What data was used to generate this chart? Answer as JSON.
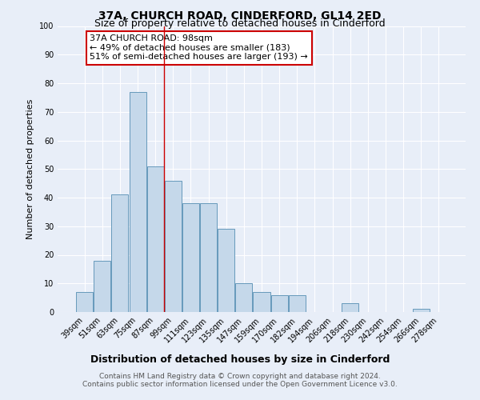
{
  "title": "37A, CHURCH ROAD, CINDERFORD, GL14 2ED",
  "subtitle": "Size of property relative to detached houses in Cinderford",
  "xlabel": "Distribution of detached houses by size in Cinderford",
  "ylabel": "Number of detached properties",
  "footer1": "Contains HM Land Registry data © Crown copyright and database right 2024.",
  "footer2": "Contains public sector information licensed under the Open Government Licence v3.0.",
  "categories": [
    "39sqm",
    "51sqm",
    "63sqm",
    "75sqm",
    "87sqm",
    "99sqm",
    "111sqm",
    "123sqm",
    "135sqm",
    "147sqm",
    "159sqm",
    "170sqm",
    "182sqm",
    "194sqm",
    "206sqm",
    "218sqm",
    "230sqm",
    "242sqm",
    "254sqm",
    "266sqm",
    "278sqm"
  ],
  "values": [
    7,
    18,
    41,
    77,
    51,
    46,
    38,
    38,
    29,
    10,
    7,
    6,
    6,
    0,
    0,
    3,
    0,
    0,
    0,
    1,
    0
  ],
  "bar_color": "#c5d8ea",
  "bar_edge_color": "#6699bb",
  "reference_line_index": 4.5,
  "reference_line_color": "#cc0000",
  "annotation_text": "37A CHURCH ROAD: 98sqm\n← 49% of detached houses are smaller (183)\n51% of semi-detached houses are larger (193) →",
  "annotation_box_color": "#ffffff",
  "annotation_box_edge_color": "#cc0000",
  "ylim": [
    0,
    100
  ],
  "background_color": "#e8eef8",
  "plot_background_color": "#e8eef8",
  "grid_color": "#ffffff",
  "title_fontsize": 10,
  "subtitle_fontsize": 9,
  "xlabel_fontsize": 9,
  "ylabel_fontsize": 8,
  "tick_fontsize": 7,
  "annotation_fontsize": 8,
  "footer_fontsize": 6.5
}
